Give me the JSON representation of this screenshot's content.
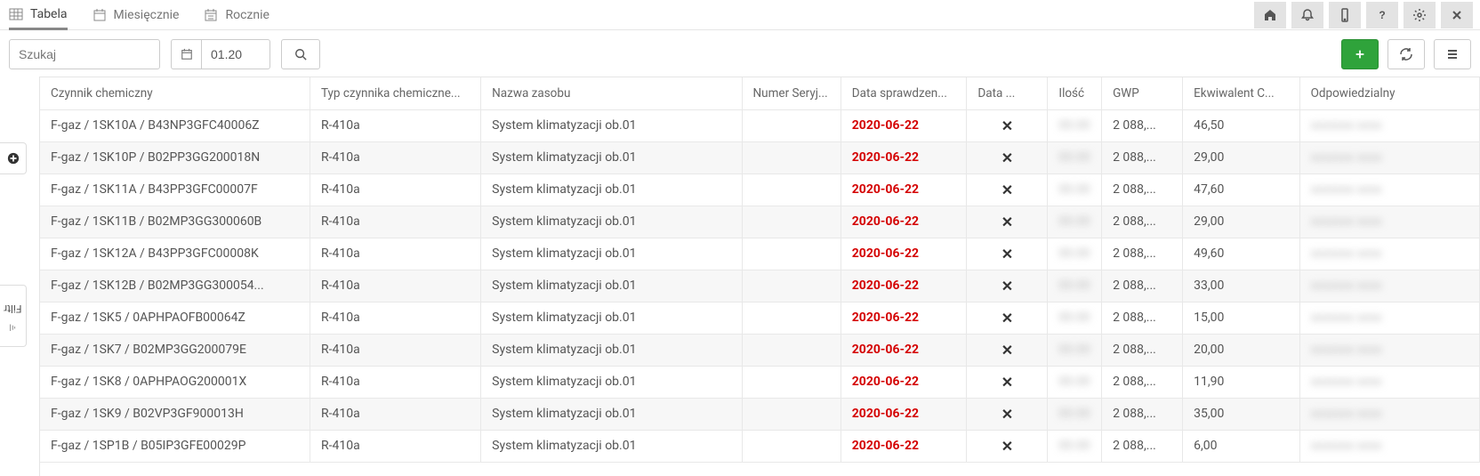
{
  "tabs": {
    "tabela": "Tabela",
    "miesiecznie": "Miesięcznie",
    "rocznie": "Rocznie"
  },
  "search": {
    "placeholder": "Szukaj"
  },
  "date": {
    "value": "01.20"
  },
  "rail": {
    "filtr": "Filtr"
  },
  "columns": {
    "czynnik": "Czynnik chemiczny",
    "typ": "Typ czynnika chemiczne...",
    "nazwa": "Nazwa zasobu",
    "numer": "Numer Seryj...",
    "dataspr": "Data sprawdzen...",
    "data2": "Data ...",
    "ilosc": "Ilość",
    "gwp": "GWP",
    "ekw": "Ekwiwalent C...",
    "odp": "Odpowiedzialny"
  },
  "rowDefaults": {
    "typ": "R-410a",
    "nazwa": "System klimatyzacji ob.01",
    "dataspr": "2020-06-22",
    "gwp": "2 088,..."
  },
  "rows": [
    {
      "czynnik": "F-gaz / 1SK10A / B43NP3GFC40006Z",
      "ekw": "46,50"
    },
    {
      "czynnik": "F-gaz / 1SK10P / B02PP3GG200018N",
      "ekw": "29,00"
    },
    {
      "czynnik": "F-gaz / 1SK11A / B43PP3GFC00007F",
      "ekw": "47,60"
    },
    {
      "czynnik": "F-gaz / 1SK11B / B02MP3GG300060B",
      "ekw": "29,00"
    },
    {
      "czynnik": "F-gaz / 1SK12A / B43PP3GFC00008K",
      "ekw": "49,60"
    },
    {
      "czynnik": "F-gaz / 1SK12B / B02MP3GG300054...",
      "ekw": "33,00"
    },
    {
      "czynnik": "F-gaz / 1SK5 / 0APHPAOFB00064Z",
      "ekw": "15,00"
    },
    {
      "czynnik": "F-gaz / 1SK7 / B02MP3GG200079E",
      "ekw": "20,00"
    },
    {
      "czynnik": "F-gaz / 1SK8 / 0APHPAOG200001X",
      "ekw": "11,90"
    },
    {
      "czynnik": "F-gaz / 1SK9 / B02VP3GF900013H",
      "ekw": "35,00"
    },
    {
      "czynnik": "F-gaz / 1SP1B / B05IP3GFE00029P",
      "ekw": "6,00"
    }
  ],
  "colors": {
    "dateRed": "#d40000",
    "addBtn": "#2fa33b"
  }
}
